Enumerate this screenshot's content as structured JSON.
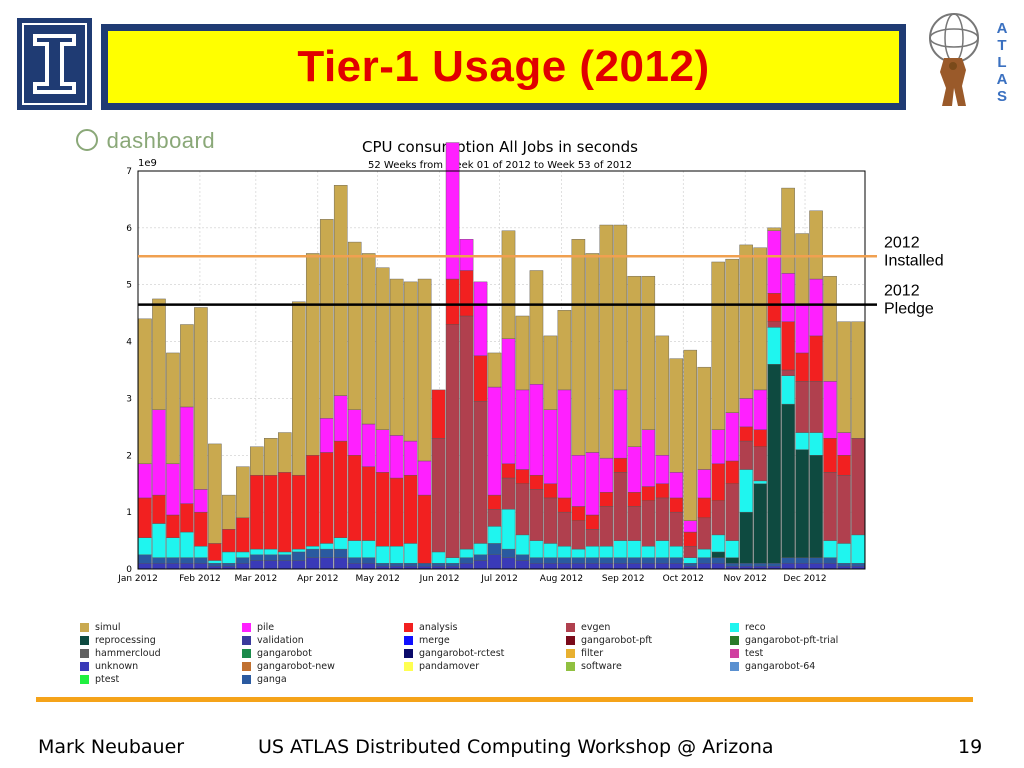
{
  "slide": {
    "title": "Tier-1 Usage (2012)",
    "dashboard_logo": "dashboard",
    "atlas_letters": [
      "A",
      "T",
      "L",
      "A",
      "S"
    ],
    "footer_left": "Mark Neubauer",
    "footer_center": "US ATLAS Distributed Computing Workshop @ Arizona",
    "footer_page": "19"
  },
  "chart_data": {
    "type": "bar",
    "stacked": true,
    "title": "CPU consumption All Jobs in seconds",
    "subtitle": "52 Weeks from Week 01 of 2012 to Week 53 of 2012",
    "y_exponent_label": "1e9",
    "ylim": [
      0,
      7
    ],
    "y_ticks": [
      0,
      1,
      2,
      3,
      4,
      5,
      6,
      7
    ],
    "x_tick_labels": [
      "Jan 2012",
      "Feb 2012",
      "Mar 2012",
      "Apr 2012",
      "May 2012",
      "Jun 2012",
      "Jul 2012",
      "Aug 2012",
      "Sep 2012",
      "Oct 2012",
      "Nov 2012",
      "Dec 2012"
    ],
    "x_tick_week_index": [
      0,
      4.43,
      8.43,
      12.86,
      17.14,
      21.57,
      25.86,
      30.29,
      34.71,
      39,
      43.43,
      47.71
    ],
    "n_weeks": 52,
    "reference_lines": [
      {
        "label_line1": "2012",
        "label_line2": "Installed",
        "value": 5.5,
        "color": "#f0a050"
      },
      {
        "label_line1": "2012",
        "label_line2": "Pledge",
        "value": 4.65,
        "color": "#000000"
      }
    ],
    "series": [
      {
        "name": "unknown",
        "color": "#3a3ab8",
        "values": [
          0.1,
          0.1,
          0.1,
          0.1,
          0.1,
          0.05,
          0.05,
          0.1,
          0.15,
          0.15,
          0.15,
          0.15,
          0.2,
          0.2,
          0.2,
          0.1,
          0.1,
          0.05,
          0.05,
          0.05,
          0.05,
          0.05,
          0.05,
          0.1,
          0.15,
          0.25,
          0.2,
          0.15,
          0.1,
          0.1,
          0.1,
          0.1,
          0.1,
          0.1,
          0.1,
          0.1,
          0.1,
          0.1,
          0.1,
          0.05,
          0.1,
          0.1,
          0.05,
          0.05,
          0.05,
          0.05,
          0.1,
          0.1,
          0.1,
          0.1,
          0.05,
          0.05
        ]
      },
      {
        "name": "ganga",
        "color": "#2a5aa0",
        "values": [
          0.15,
          0.1,
          0.1,
          0.1,
          0.1,
          0.05,
          0.05,
          0.1,
          0.1,
          0.1,
          0.1,
          0.15,
          0.15,
          0.15,
          0.15,
          0.1,
          0.1,
          0.05,
          0.05,
          0.05,
          0.05,
          0.05,
          0.05,
          0.1,
          0.1,
          0.2,
          0.15,
          0.1,
          0.1,
          0.1,
          0.1,
          0.1,
          0.1,
          0.1,
          0.1,
          0.1,
          0.1,
          0.1,
          0.1,
          0.05,
          0.1,
          0.1,
          0.05,
          0.05,
          0.05,
          0.05,
          0.1,
          0.1,
          0.1,
          0.1,
          0.05,
          0.05
        ]
      },
      {
        "name": "reprocessing",
        "color": "#0e4a40",
        "values": [
          0,
          0,
          0,
          0,
          0,
          0,
          0,
          0,
          0,
          0,
          0,
          0,
          0,
          0,
          0,
          0,
          0,
          0,
          0,
          0,
          0,
          0,
          0,
          0,
          0,
          0,
          0,
          0,
          0,
          0,
          0,
          0,
          0,
          0,
          0,
          0,
          0,
          0,
          0,
          0,
          0,
          0.1,
          0.1,
          0.9,
          1.4,
          3.5,
          2.7,
          1.9,
          1.8,
          0,
          0,
          0
        ]
      },
      {
        "name": "reco",
        "color": "#1ff5ef",
        "values": [
          0.3,
          0.6,
          0.35,
          0.45,
          0.2,
          0.05,
          0.2,
          0.1,
          0.1,
          0.1,
          0.05,
          0.05,
          0.05,
          0.1,
          0.2,
          0.3,
          0.3,
          0.3,
          0.3,
          0.35,
          0,
          0.2,
          0.1,
          0.15,
          0.2,
          0.3,
          0.7,
          0.35,
          0.3,
          0.25,
          0.2,
          0.15,
          0.2,
          0.2,
          0.3,
          0.3,
          0.2,
          0.3,
          0.2,
          0.1,
          0.15,
          0.3,
          0.3,
          0.75,
          0.05,
          0.65,
          0.5,
          0.3,
          0.4,
          0.3,
          0.35,
          0.5
        ]
      },
      {
        "name": "evgen",
        "color": "#b0404e",
        "values": [
          0,
          0,
          0,
          0,
          0,
          0,
          0,
          0,
          0,
          0,
          0,
          0,
          0,
          0,
          0,
          0,
          0,
          0,
          0,
          0,
          0,
          2,
          4.1,
          4.1,
          2.5,
          0.3,
          0.55,
          0.9,
          0.9,
          0.8,
          0.6,
          0.5,
          0.3,
          0.7,
          1.2,
          0.6,
          0.8,
          0.75,
          0.6,
          0.2,
          0.55,
          0.6,
          1.0,
          0.5,
          0.6,
          0.1,
          0.1,
          0.9,
          0.9,
          1.2,
          1.2,
          1.7
        ]
      },
      {
        "name": "analysis",
        "color": "#f22020",
        "values": [
          0.7,
          0.5,
          0.4,
          0.5,
          0.6,
          0.3,
          0.4,
          0.6,
          1.3,
          1.3,
          1.4,
          1.3,
          1.6,
          1.6,
          1.7,
          1.5,
          1.3,
          1.3,
          1.2,
          1.2,
          1.2,
          0.85,
          0.8,
          0.8,
          0.8,
          0.25,
          0.25,
          0.25,
          0.25,
          0.25,
          0.25,
          0.25,
          0.25,
          0.25,
          0.25,
          0.25,
          0.25,
          0.25,
          0.25,
          0.25,
          0.35,
          0.65,
          0.4,
          0.25,
          0.3,
          0.5,
          0.85,
          0.5,
          0.8,
          0.6,
          0.35,
          0
        ]
      },
      {
        "name": "pile",
        "color": "#ff20ff",
        "values": [
          0.6,
          1.5,
          0.9,
          1.7,
          0.4,
          0,
          0,
          0,
          0,
          0,
          0,
          0,
          0,
          0.6,
          0.8,
          0.8,
          0.75,
          0.75,
          0.75,
          0.6,
          0.6,
          0,
          2.4,
          0.55,
          1.3,
          1.9,
          2.2,
          1.4,
          1.6,
          1.3,
          1.9,
          0.9,
          1.1,
          0.6,
          1.2,
          0.8,
          1.0,
          0.5,
          0.45,
          0.2,
          0.5,
          0.6,
          0.85,
          0.5,
          0.7,
          1.1,
          0.85,
          0.85,
          1.0,
          1.0,
          0.4,
          0
        ]
      },
      {
        "name": "simul",
        "color": "#c9a94f",
        "values": [
          2.55,
          1.95,
          1.95,
          1.45,
          3.2,
          1.75,
          0.6,
          0.9,
          0.5,
          0.65,
          0.7,
          3.05,
          3.55,
          3.5,
          3.7,
          2.95,
          3.0,
          2.85,
          2.75,
          2.8,
          3.2,
          0,
          0,
          0,
          0,
          0.6,
          1.9,
          1.3,
          2.0,
          1.3,
          1.4,
          3.8,
          3.5,
          4.1,
          2.9,
          3.0,
          2.7,
          2.1,
          2.0,
          3.0,
          1.8,
          2.95,
          2.7,
          2.7,
          2.5,
          0.05,
          1.5,
          1.25,
          1.2,
          1.85,
          1.95,
          2.05
        ]
      },
      {
        "name": "validation",
        "color": "#3a3a9c",
        "values": []
      },
      {
        "name": "merge",
        "color": "#1010ff",
        "values": []
      },
      {
        "name": "gangarobot-pft",
        "color": "#7a0a1a",
        "values": []
      },
      {
        "name": "gangarobot-pft-trial",
        "color": "#2a7a2a",
        "values": []
      },
      {
        "name": "hammercloud",
        "color": "#606060",
        "values": []
      },
      {
        "name": "gangarobot",
        "color": "#1a8a4a",
        "values": []
      },
      {
        "name": "gangarobot-rctest",
        "color": "#0a0a6a",
        "values": []
      },
      {
        "name": "filter",
        "color": "#e8b030",
        "values": []
      },
      {
        "name": "test",
        "color": "#d040a0",
        "values": []
      },
      {
        "name": "gangarobot-new",
        "color": "#c07030",
        "values": []
      },
      {
        "name": "pandamover",
        "color": "#ffff50",
        "values": []
      },
      {
        "name": "software",
        "color": "#90c040",
        "values": []
      },
      {
        "name": "gangarobot-64",
        "color": "#5a90d0",
        "values": []
      },
      {
        "name": "ptest",
        "color": "#20f040",
        "values": []
      }
    ],
    "legend_order": [
      "simul",
      "pile",
      "analysis",
      "evgen",
      "reco",
      "reprocessing",
      "validation",
      "merge",
      "gangarobot-pft",
      "gangarobot-pft-trial",
      "hammercloud",
      "gangarobot",
      "gangarobot-rctest",
      "filter",
      "test",
      "unknown",
      "gangarobot-new",
      "pandamover",
      "software",
      "gangarobot-64",
      "ptest",
      "ganga"
    ]
  }
}
